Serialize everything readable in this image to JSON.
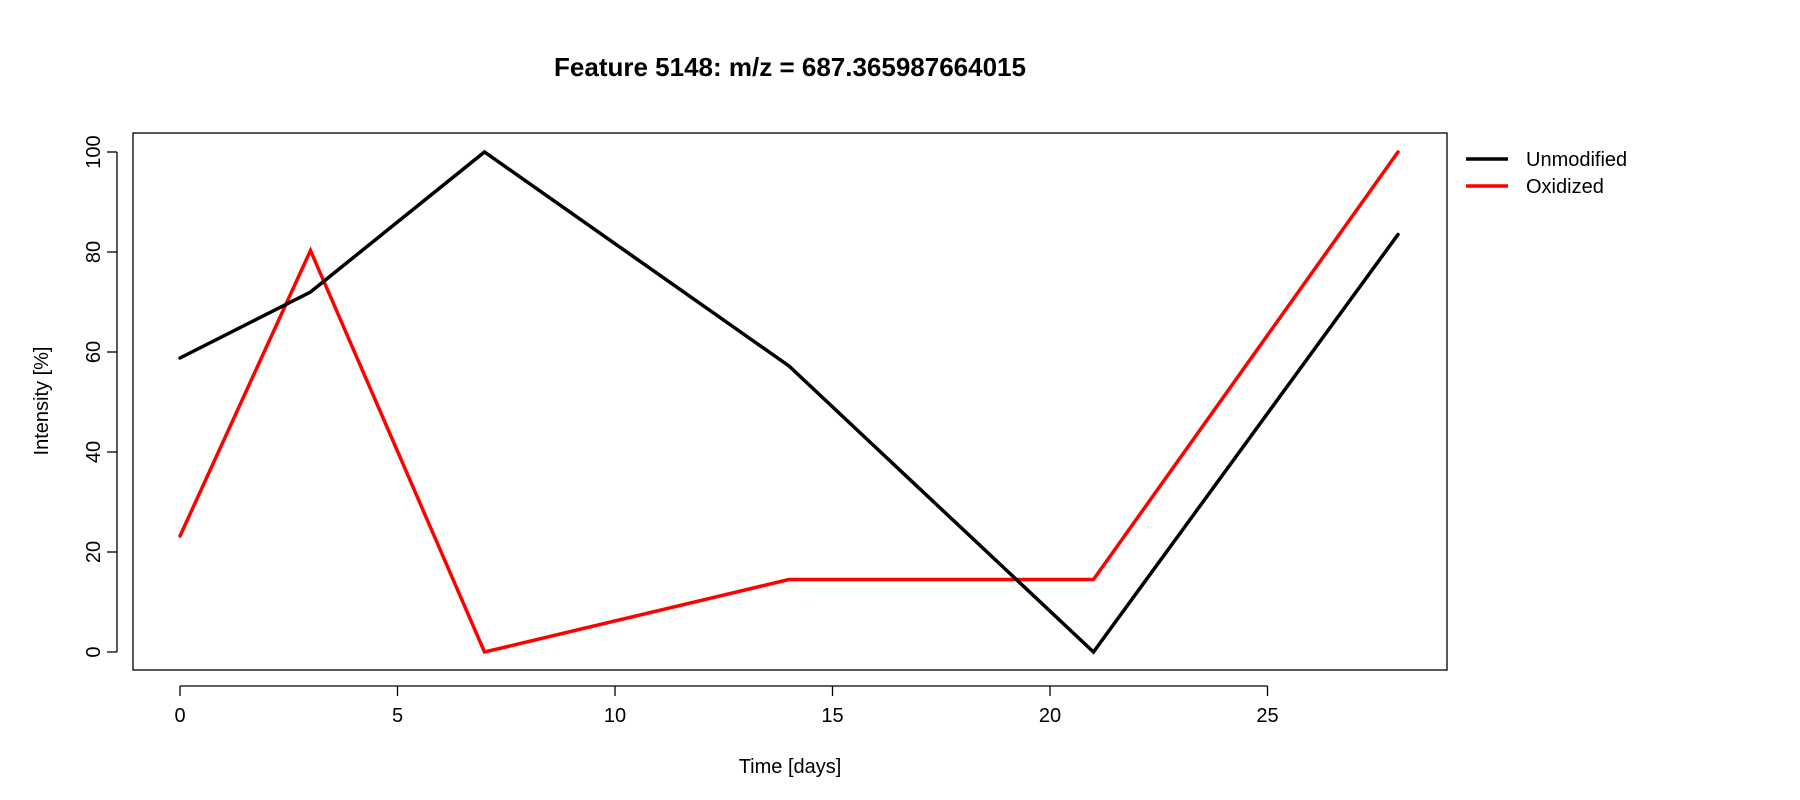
{
  "chart_data": {
    "type": "line",
    "title": "Feature 5148: m/z = 687.365987664015",
    "xlabel": "Time [days]",
    "ylabel": "Intensity [%]",
    "xlim": [
      0,
      28
    ],
    "ylim": [
      0,
      100
    ],
    "xticks": [
      0,
      5,
      10,
      15,
      20,
      25
    ],
    "yticks": [
      0,
      20,
      40,
      60,
      80,
      100
    ],
    "grid": false,
    "legend_position": "right-outside-top",
    "x": [
      0,
      3,
      7,
      14,
      21,
      28
    ],
    "series": [
      {
        "name": "Unmodified",
        "color": "#000000",
        "values": [
          58.8,
          72.0,
          100.0,
          57.2,
          0.0,
          83.5
        ]
      },
      {
        "name": "Oxidized",
        "color": "#ff0000",
        "values": [
          23.2,
          80.3,
          0.0,
          14.5,
          14.5,
          100.0
        ]
      }
    ]
  }
}
